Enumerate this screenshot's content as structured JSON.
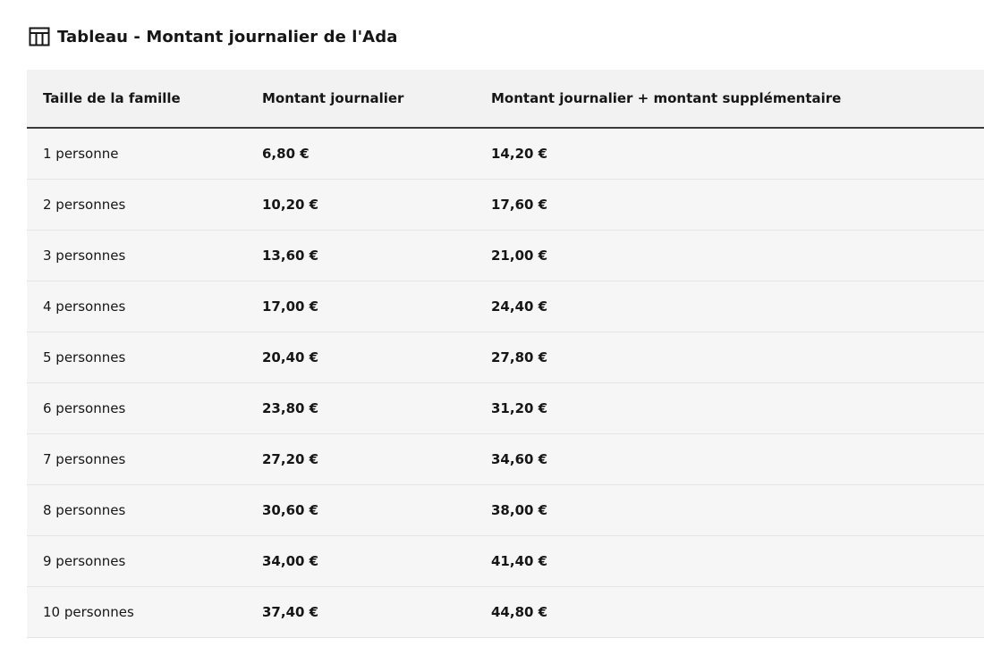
{
  "caption": {
    "icon": "table-icon",
    "text": "Tableau - Montant journalier de l'Ada"
  },
  "table": {
    "headers": [
      "Taille de la famille",
      "Montant journalier",
      "Montant journalier + montant supplémentaire"
    ],
    "rows": [
      [
        "1 personne",
        "6,80 €",
        "14,20 €"
      ],
      [
        "2 personnes",
        "10,20 €",
        "17,60 €"
      ],
      [
        "3 personnes",
        "13,60 €",
        "21,00 €"
      ],
      [
        "4 personnes",
        "17,00 €",
        "24,40 €"
      ],
      [
        "5 personnes",
        "20,40 €",
        "27,80 €"
      ],
      [
        "6 personnes",
        "23,80 €",
        "31,20 €"
      ],
      [
        "7 personnes",
        "27,20 €",
        "34,60 €"
      ],
      [
        "8 personnes",
        "30,60 €",
        "38,00 €"
      ],
      [
        "9 personnes",
        "34,00 €",
        "41,40 €"
      ],
      [
        "10 personnes",
        "37,40 €",
        "44,80 €"
      ]
    ]
  }
}
